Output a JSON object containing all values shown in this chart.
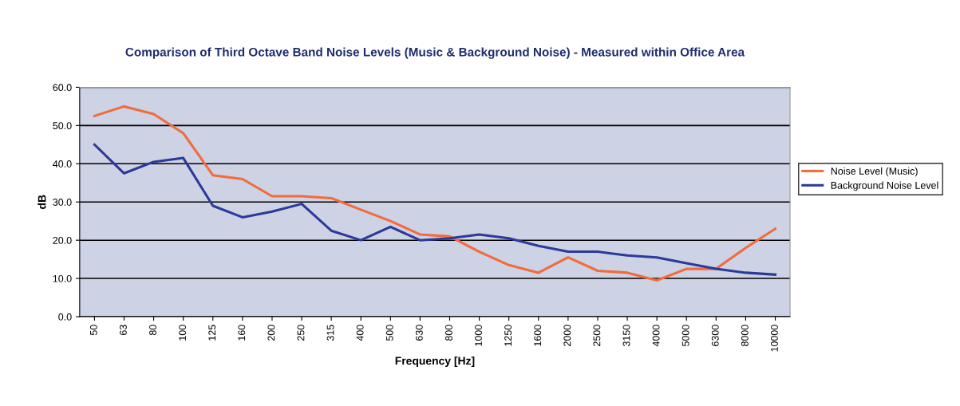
{
  "chart_data": {
    "type": "line",
    "title": "Comparison of Third Octave Band Noise Levels (Music & Background Noise) - Measured within Office Area",
    "xlabel": "Frequency [Hz]",
    "ylabel": "dB",
    "categories": [
      "50",
      "63",
      "80",
      "100",
      "125",
      "160",
      "200",
      "250",
      "315",
      "400",
      "500",
      "630",
      "800",
      "1000",
      "1250",
      "1600",
      "2000",
      "2500",
      "3150",
      "4000",
      "5000",
      "6300",
      "8000",
      "10000"
    ],
    "series": [
      {
        "name": "Noise Level (Music)",
        "color": "#f26b3a",
        "values": [
          52.5,
          55,
          53,
          48,
          37,
          36,
          31.5,
          31.5,
          31,
          28,
          25,
          21.5,
          21,
          17,
          13.5,
          11.5,
          15.5,
          12,
          11.5,
          9.5,
          12.5,
          12.5,
          18,
          23
        ]
      },
      {
        "name": "Background Noise Level",
        "color": "#2b3a9a",
        "values": [
          45,
          37.5,
          40.5,
          41.5,
          29,
          26,
          27.5,
          29.5,
          22.5,
          20,
          23.5,
          20,
          20.5,
          21.5,
          20.5,
          18.5,
          17,
          17,
          16,
          15.5,
          14,
          12.5,
          11.5,
          11
        ]
      }
    ],
    "ylim": [
      0,
      60
    ],
    "yticks": [
      {
        "value": 0,
        "label": "0.0"
      },
      {
        "value": 10,
        "label": "10.0"
      },
      {
        "value": 20,
        "label": "20.0"
      },
      {
        "value": 30,
        "label": "30.0"
      },
      {
        "value": 40,
        "label": "40.0"
      },
      {
        "value": 50,
        "label": "50.0"
      },
      {
        "value": 60,
        "label": "60.0"
      }
    ],
    "grid": "y",
    "legend": "right",
    "marker": "none",
    "line_style": "solid"
  }
}
